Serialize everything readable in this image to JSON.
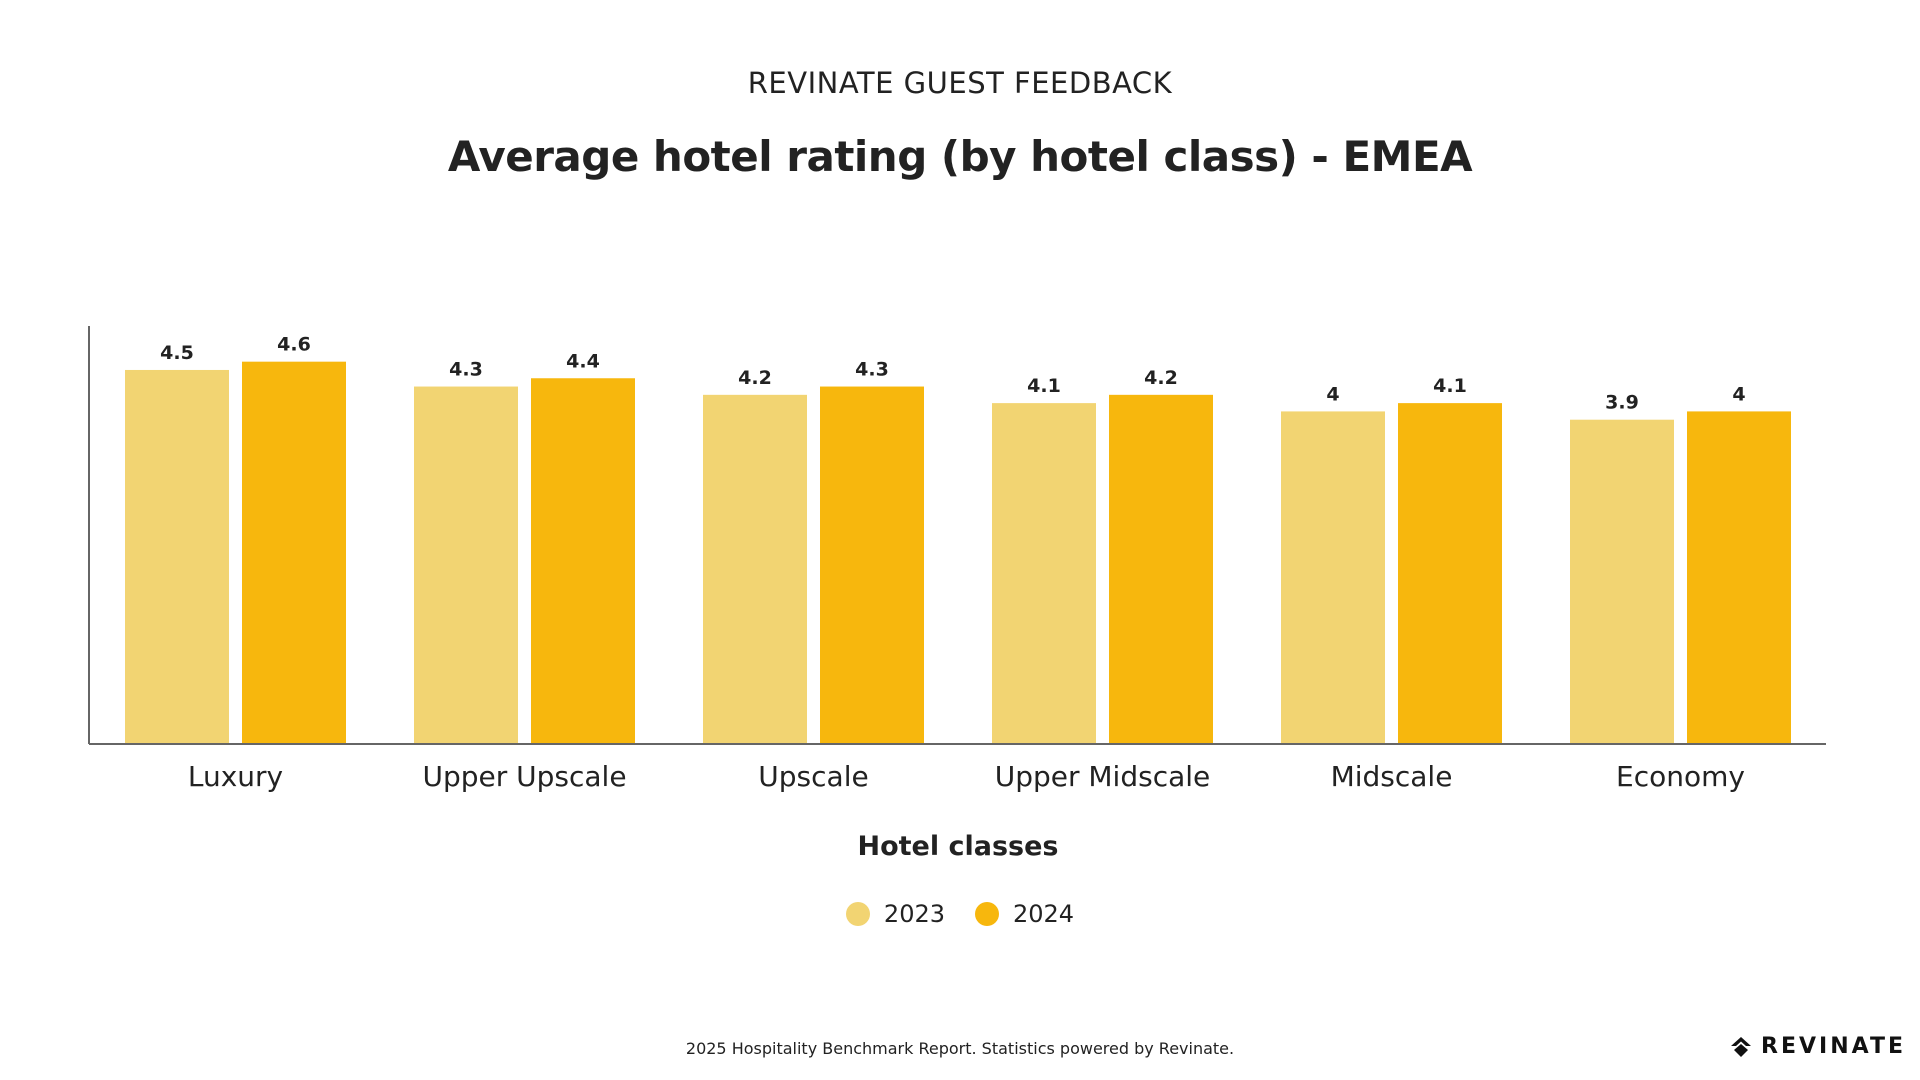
{
  "header": {
    "kicker": "REVINATE GUEST FEEDBACK",
    "title": "Average hotel rating (by hotel class) - EMEA"
  },
  "chart_data": {
    "type": "bar",
    "categories": [
      "Luxury",
      "Upper Upscale",
      "Upscale",
      "Upper Midscale",
      "Midscale",
      "Economy"
    ],
    "series": [
      {
        "name": "2023",
        "values": [
          4.5,
          4.3,
          4.2,
          4.1,
          4,
          3.9
        ],
        "color": "#F2D472"
      },
      {
        "name": "2024",
        "values": [
          4.6,
          4.4,
          4.3,
          4.2,
          4.1,
          4
        ],
        "color": "#F7B70D"
      }
    ],
    "data_labels": [
      [
        "4.5",
        "4.3",
        "4.2",
        "4.1",
        "4",
        "3.9"
      ],
      [
        "4.6",
        "4.4",
        "4.3",
        "4.2",
        "4.1",
        "4"
      ]
    ],
    "xlabel": "Hotel classes",
    "ylabel": "",
    "ylim": [
      0,
      4.97
    ],
    "grid": false,
    "legend_position": "bottom-center"
  },
  "legend": {
    "items": [
      {
        "label": "2023",
        "color": "#F2D472"
      },
      {
        "label": "2024",
        "color": "#F7B70D"
      }
    ]
  },
  "footer": {
    "note": "2025 Hospitality Benchmark Report. Statistics powered by Revinate.",
    "brand": "REVINATE"
  }
}
